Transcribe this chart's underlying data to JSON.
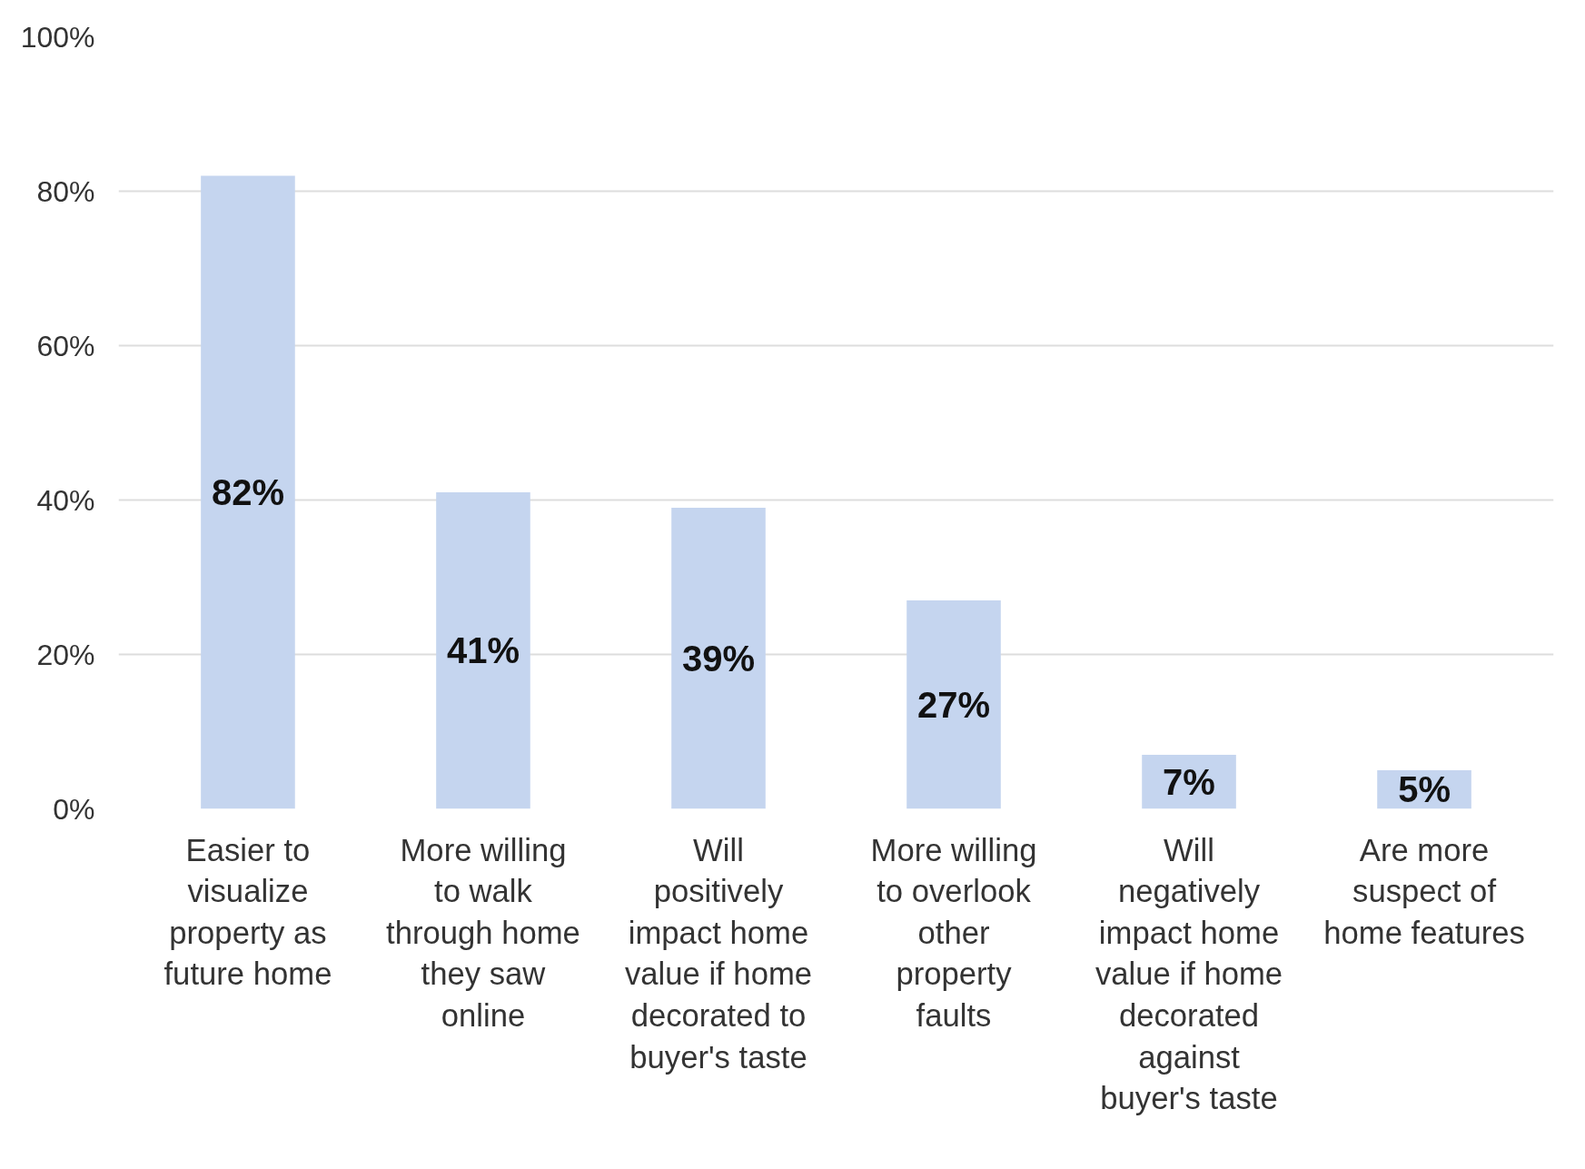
{
  "chart_data": {
    "type": "bar",
    "categories": [
      "Easier to visualize property as future home",
      "More willing to walk through home they saw online",
      "Will positively impact home value if home decorated to buyer's taste",
      "More willing to overlook other property faults",
      "Will negatively impact home value if home decorated against buyer's taste",
      "Are more suspect of home features"
    ],
    "values": [
      82,
      41,
      39,
      27,
      7,
      5
    ],
    "color": "#c5d5ef",
    "ylim": [
      0,
      100
    ],
    "yticks": [
      {
        "value": 0,
        "label": "0%"
      },
      {
        "value": 20,
        "label": "20%"
      },
      {
        "value": 40,
        "label": "40%"
      },
      {
        "value": 60,
        "label": "60%"
      },
      {
        "value": 80,
        "label": "80%"
      },
      {
        "value": 100,
        "label": "100%"
      }
    ],
    "value_labels": [
      "82%",
      "41%",
      "39%",
      "27%",
      "7%",
      "5%"
    ],
    "grid": "y"
  }
}
